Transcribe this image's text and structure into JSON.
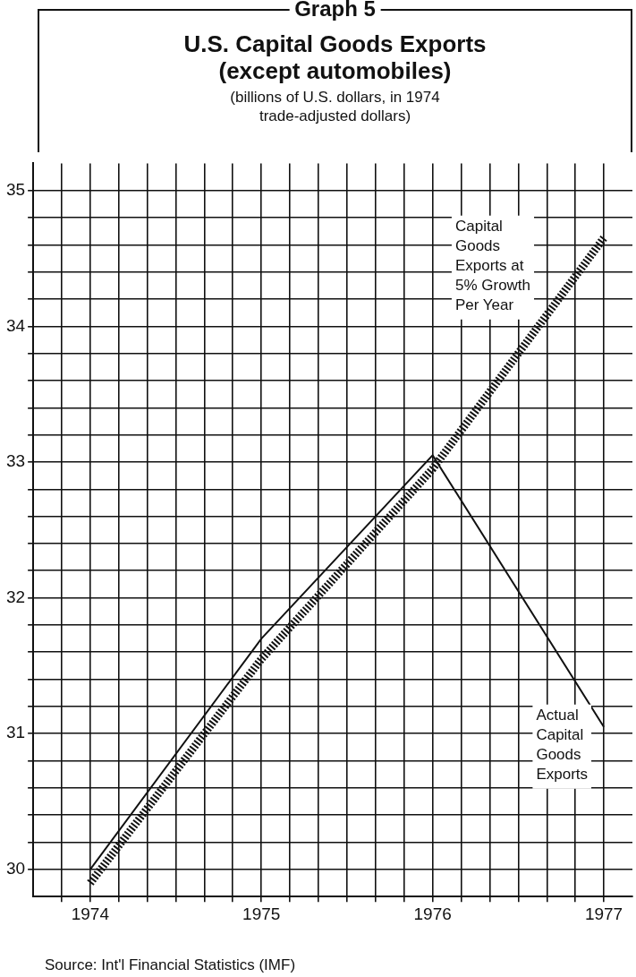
{
  "chart_data": {
    "type": "line",
    "title": "U.S. Capital Goods Exports (except automobiles)",
    "subtitle": "(billions of U.S. dollars, in 1974 trade-adjusted dollars)",
    "annotations": [
      "Graph 5",
      "Source: Int'l Financial Statistics (IMF)"
    ],
    "x": [
      1974,
      1975,
      1976,
      1977
    ],
    "series": [
      {
        "name": "Actual Capital Goods Exports",
        "color": "#111111",
        "values": [
          30.0,
          31.7,
          33.05,
          31.05
        ],
        "line_style": "solid"
      },
      {
        "name": "Capital Goods Exports at 5% Growth Per Year",
        "color": "#111111",
        "values": [
          29.9,
          31.55,
          32.95,
          34.65
        ],
        "line_style": "dashed"
      }
    ],
    "xlim": [
      1973.667,
      1977.167
    ],
    "xticks": [
      {
        "value": 1973.833,
        "label": null
      },
      1974,
      {
        "value": 1974.167,
        "label": null
      },
      {
        "value": 1974.333,
        "label": null
      },
      {
        "value": 1974.5,
        "label": null
      },
      {
        "value": 1974.667,
        "label": null
      },
      {
        "value": 1974.833,
        "label": null
      },
      1975,
      {
        "value": 1975.167,
        "label": null
      },
      {
        "value": 1975.333,
        "label": null
      },
      {
        "value": 1975.5,
        "label": null
      },
      {
        "value": 1975.667,
        "label": null
      },
      {
        "value": 1975.833,
        "label": null
      },
      1976,
      {
        "value": 1976.167,
        "label": null
      },
      {
        "value": 1976.333,
        "label": null
      },
      {
        "value": 1976.5,
        "label": null
      },
      {
        "value": 1976.667,
        "label": null
      },
      {
        "value": 1976.833,
        "label": null
      },
      1977
    ],
    "ylim": [
      29.8,
      35.2
    ],
    "yticks": [
      30,
      {
        "value": 30.2,
        "label": null
      },
      {
        "value": 30.4,
        "label": null
      },
      {
        "value": 30.6,
        "label": null
      },
      {
        "value": 30.8,
        "label": null
      },
      31,
      {
        "value": 31.2,
        "label": null
      },
      {
        "value": 31.4,
        "label": null
      },
      {
        "value": 31.6,
        "label": null
      },
      {
        "value": 31.8,
        "label": null
      },
      32,
      {
        "value": 32.2,
        "label": null
      },
      {
        "value": 32.4,
        "label": null
      },
      {
        "value": 32.6,
        "label": null
      },
      {
        "value": 32.8,
        "label": null
      },
      33,
      {
        "value": 33.2,
        "label": null
      },
      {
        "value": 33.4,
        "label": null
      },
      {
        "value": 33.6,
        "label": null
      },
      {
        "value": 33.8,
        "label": null
      },
      34,
      {
        "value": 34.2,
        "label": null
      },
      {
        "value": 34.4,
        "label": null
      },
      {
        "value": 34.6,
        "label": null
      },
      {
        "value": 34.8,
        "label": null
      },
      35
    ],
    "grid": true,
    "legend": false,
    "marker": "none"
  }
}
